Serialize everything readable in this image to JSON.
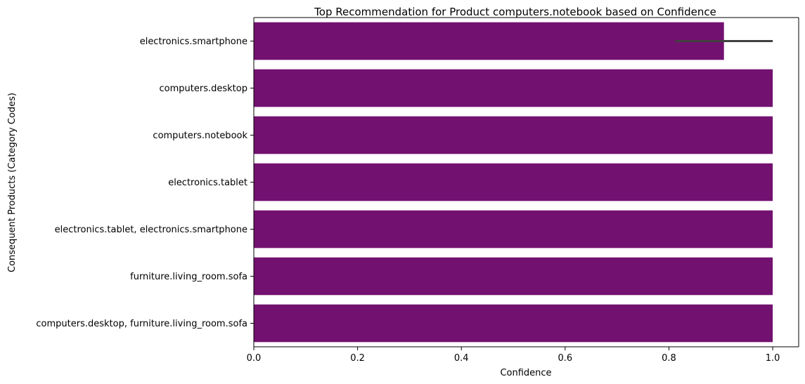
{
  "chart_data": {
    "type": "bar",
    "orientation": "horizontal",
    "title": "Top Recommendation for Product computers.notebook based on Confidence",
    "xlabel": "Confidence",
    "ylabel": "Consequent Products (Category Codes)",
    "xlim": [
      0,
      1.05
    ],
    "xticks": [
      "0.0",
      "0.2",
      "0.4",
      "0.6",
      "0.8",
      "1.0"
    ],
    "xtick_values": [
      0,
      0.2,
      0.4,
      0.6,
      0.8,
      1.0
    ],
    "grid": false,
    "bar_color": "#731170",
    "errorbar_color": "#404040",
    "categories": [
      "electronics.smartphone",
      "computers.desktop",
      "computers.notebook",
      "electronics.tablet",
      "electronics.tablet, electronics.smartphone",
      "furniture.living_room.sofa",
      "computers.desktop, furniture.living_room.sofa"
    ],
    "values": [
      0.906,
      1.0,
      1.0,
      1.0,
      1.0,
      1.0,
      1.0
    ],
    "error_ranges": [
      [
        0.812,
        1.0
      ],
      null,
      null,
      null,
      null,
      null,
      null
    ]
  }
}
